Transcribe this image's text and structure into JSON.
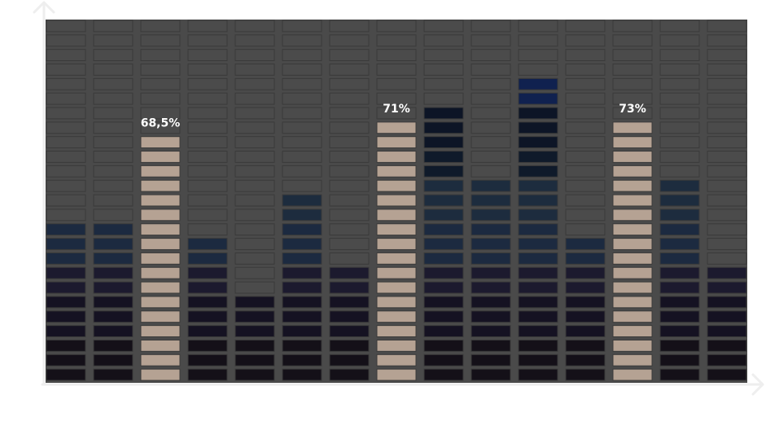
{
  "chart_data": {
    "type": "bar",
    "title": "",
    "xlabel": "",
    "ylabel": "",
    "ylim": [
      0,
      100
    ],
    "grid": false,
    "legend": "none",
    "segments_per_column": 25,
    "colors": {
      "background": "#4a4a4a",
      "empty_cell": "#4b4b4b",
      "empty_cell_border": "#3a3a3a",
      "highlight_cell": "#b5a293",
      "axis": "#eeeeee",
      "gradient_bottom_to_top": [
        "#141018",
        "#151222",
        "#1c1a2e",
        "#1c2a40",
        "#1d2c3e",
        "#0f1a2a",
        "#0d1526",
        "#10214f",
        "#0a1550"
      ]
    },
    "values": [
      44,
      45,
      68.5,
      40,
      24,
      50,
      33,
      71,
      75,
      56,
      82,
      39,
      73,
      55,
      30
    ],
    "highlight": [
      false,
      false,
      true,
      false,
      false,
      false,
      false,
      true,
      false,
      false,
      false,
      false,
      true,
      false,
      false
    ],
    "labels": [
      "",
      "",
      "68,5%",
      "",
      "",
      "",
      "",
      "71%",
      "",
      "",
      "",
      "",
      "73%",
      "",
      ""
    ]
  }
}
